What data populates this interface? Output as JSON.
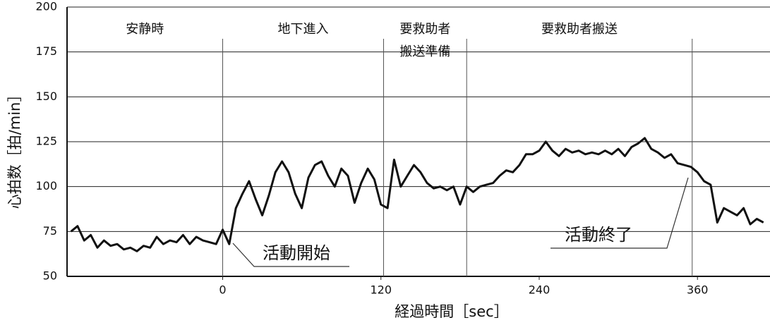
{
  "chart_data": {
    "type": "line",
    "y_label": "心拍数［拍/min］",
    "x_label": "経過時間［sec］",
    "xlim": [
      -118,
      415
    ],
    "xticks": [
      0,
      120,
      240,
      360
    ],
    "ylim": [
      50,
      200
    ],
    "yticks": [
      50,
      75,
      100,
      125,
      150,
      175,
      200
    ],
    "grid": true,
    "phase_boundaries": [
      0,
      122,
      185,
      356
    ],
    "phases": [
      [
        "安静時"
      ],
      [
        "地下進入"
      ],
      [
        "要救助者",
        "搬送準備"
      ],
      [
        "要救助者搬送"
      ]
    ],
    "annotations": [
      "活動開始",
      "活動終了"
    ],
    "series": [
      {
        "color": "#111111",
        "x": [
          -115,
          -110,
          -105,
          -100,
          -95,
          -90,
          -85,
          -80,
          -75,
          -70,
          -65,
          -60,
          -55,
          -50,
          -45,
          -40,
          -35,
          -30,
          -25,
          -20,
          -15,
          -10,
          -5,
          0,
          5,
          10,
          15,
          20,
          25,
          30,
          35,
          40,
          45,
          50,
          55,
          60,
          65,
          70,
          75,
          80,
          85,
          90,
          95,
          100,
          105,
          110,
          115,
          120,
          125,
          130,
          135,
          140,
          145,
          150,
          155,
          160,
          165,
          170,
          175,
          180,
          185,
          190,
          195,
          200,
          205,
          210,
          215,
          220,
          225,
          230,
          235,
          240,
          245,
          250,
          255,
          260,
          265,
          270,
          275,
          280,
          285,
          290,
          295,
          300,
          305,
          310,
          315,
          320,
          325,
          330,
          335,
          340,
          345,
          350,
          355,
          360,
          365,
          370,
          375,
          380,
          385,
          390,
          395,
          400,
          405,
          410
        ],
        "values": [
          75,
          78,
          70,
          73,
          66,
          70,
          67,
          68,
          65,
          66,
          64,
          67,
          66,
          72,
          68,
          70,
          69,
          73,
          68,
          72,
          70,
          69,
          68,
          76,
          68,
          88,
          96,
          103,
          93,
          84,
          95,
          108,
          114,
          108,
          96,
          88,
          105,
          112,
          114,
          106,
          100,
          110,
          106,
          91,
          102,
          110,
          104,
          90,
          88,
          115,
          100,
          106,
          112,
          108,
          102,
          99,
          100,
          98,
          100,
          90,
          100,
          97,
          100,
          101,
          102,
          106,
          109,
          108,
          112,
          118,
          118,
          120,
          125,
          120,
          117,
          121,
          119,
          120,
          118,
          119,
          118,
          120,
          118,
          121,
          117,
          122,
          124,
          127,
          121,
          119,
          116,
          118,
          113,
          112,
          111,
          108,
          103,
          101,
          80,
          88,
          86,
          84,
          88,
          79,
          82,
          80
        ]
      }
    ]
  }
}
